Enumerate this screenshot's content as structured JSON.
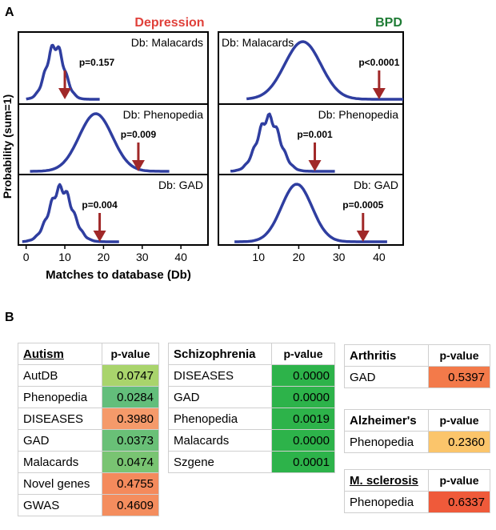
{
  "panel_a_label": "A",
  "panel_b_label": "B",
  "chart_data": [
    {
      "type": "line",
      "column_title": "Depression",
      "column_title_color": "#e0403a",
      "xlabel": "Matches to database (Db)",
      "ylabel": "Probability (sum=1)",
      "xlim": [
        -2,
        47
      ],
      "xticks": [
        "0",
        "10",
        "20",
        "30",
        "40"
      ],
      "subplots": [
        {
          "db_label": "Db: Malacards",
          "p_label": "p=0.157",
          "observed": 10,
          "mean": 7.5,
          "sd": 2.3,
          "x_range": [
            0,
            19
          ]
        },
        {
          "db_label": "Db: Phenopedia",
          "p_label": "p=0.009",
          "observed": 29,
          "mean": 18,
          "sd": 4.3,
          "x_range": [
            1,
            37
          ]
        },
        {
          "db_label": "Db: GAD",
          "p_label": "p=0.004",
          "observed": 19,
          "mean": 9,
          "sd": 3,
          "x_range": [
            -1,
            24
          ]
        }
      ]
    },
    {
      "type": "line",
      "column_title": "BPD",
      "column_title_color": "#1e7b34",
      "xlabel": "",
      "xlim": [
        0,
        46
      ],
      "xticks": [
        "10",
        "20",
        "30",
        "40"
      ],
      "subplots": [
        {
          "db_label": "Db: Malacards",
          "p_label": "p<0.0001",
          "observed": 40,
          "mean": 21,
          "sd": 4.5,
          "x_range": [
            7,
            46
          ]
        },
        {
          "db_label": "Db: Phenopedia",
          "p_label": "p=0.001",
          "observed": 24,
          "mean": 12.5,
          "sd": 2.8,
          "x_range": [
            3,
            29
          ]
        },
        {
          "db_label": "Db: GAD",
          "p_label": "p=0.0005",
          "observed": 36,
          "mean": 19.5,
          "sd": 3.8,
          "x_range": [
            4,
            42
          ]
        }
      ]
    }
  ],
  "tables": {
    "autism": {
      "title": "Autism",
      "pcol": "p-value",
      "rows": [
        {
          "name": "AutDB",
          "p": "0.0747",
          "color": "#a9d46c"
        },
        {
          "name": "Phenopedia",
          "p": "0.0284",
          "color": "#63be7b"
        },
        {
          "name": "DISEASES",
          "p": "0.3980",
          "color": "#f59a6a"
        },
        {
          "name": "GAD",
          "p": "0.0373",
          "color": "#69c077"
        },
        {
          "name": "Malacards",
          "p": "0.0474",
          "color": "#79c472"
        },
        {
          "name": "Novel genes",
          "p": "0.4755",
          "color": "#f48a5c"
        },
        {
          "name": "GWAS",
          "p": "0.4609",
          "color": "#f48d5e"
        }
      ]
    },
    "schizophrenia": {
      "title": "Schizophrenia",
      "pcol": "p-value",
      "rows": [
        {
          "name": "DISEASES",
          "p": "0.0000",
          "color": "#2db34a"
        },
        {
          "name": "GAD",
          "p": "0.0000",
          "color": "#2db34a"
        },
        {
          "name": "Phenopedia",
          "p": "0.0019",
          "color": "#2db34a"
        },
        {
          "name": "Malacards",
          "p": "0.0000",
          "color": "#2db34a"
        },
        {
          "name": "Szgene",
          "p": "0.0001",
          "color": "#2db34a"
        }
      ]
    },
    "arthritis": {
      "title": "Arthritis",
      "pcol": "p-value",
      "rows": [
        {
          "name": "GAD",
          "p": "0.5397",
          "color": "#f37a4a"
        }
      ]
    },
    "alzheimers": {
      "title": "Alzheimer's",
      "pcol": "p-value",
      "rows": [
        {
          "name": "Phenopedia",
          "p": "0.2360",
          "color": "#fbc56b"
        }
      ]
    },
    "ms": {
      "title": "M. sclerosis",
      "pcol": "p-value",
      "rows": [
        {
          "name": "Phenopedia",
          "p": "0.6337",
          "color": "#ef5a3a"
        }
      ]
    }
  }
}
